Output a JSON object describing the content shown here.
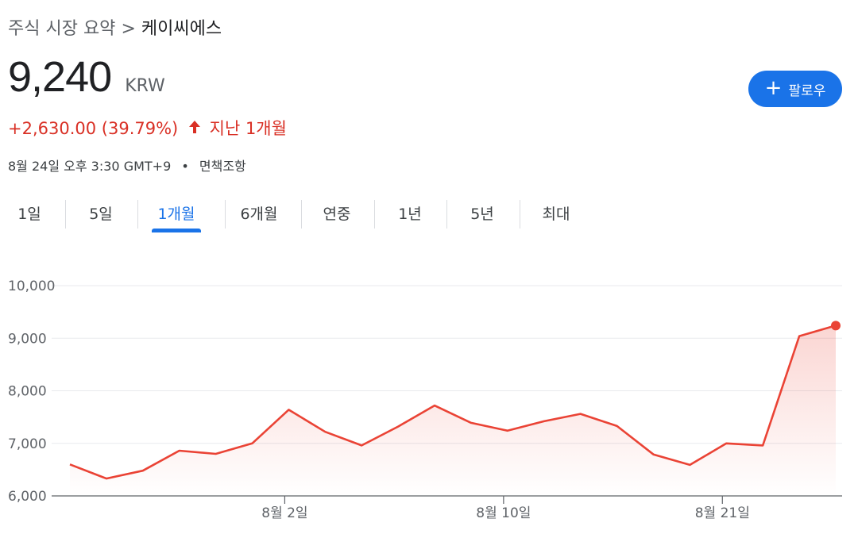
{
  "breadcrumb": {
    "parent": "주식 시장 요약",
    "separator": ">",
    "current": "케이씨에스"
  },
  "quote": {
    "price": "9,240",
    "currency": "KRW",
    "change": "+2,630.00 (39.79%)",
    "period": "지난 1개월",
    "timestamp": "8월 24일 오후 3:30 GMT+9",
    "separator_dot": "•",
    "disclaimer": "면책조항"
  },
  "follow_button": {
    "label": "팔로우",
    "icon": "plus-icon"
  },
  "tabs": [
    {
      "label": "1일",
      "active": false
    },
    {
      "label": "5일",
      "active": false
    },
    {
      "label": "1개월",
      "active": true
    },
    {
      "label": "6개월",
      "active": false
    },
    {
      "label": "연중",
      "active": false
    },
    {
      "label": "1년",
      "active": false
    },
    {
      "label": "5년",
      "active": false
    },
    {
      "label": "최대",
      "active": false
    }
  ],
  "colors": {
    "line": "#ea4335",
    "positive": "#d93025",
    "accent": "#1a73e8"
  },
  "chart_data": {
    "type": "area",
    "title": "",
    "xlabel": "",
    "ylabel": "",
    "ylim": [
      6000,
      10000
    ],
    "yticks": [
      6000,
      7000,
      8000,
      9000,
      10000
    ],
    "ytick_labels": [
      "6,000",
      "7,000",
      "8,000",
      "9,000",
      "10,000"
    ],
    "x_tick_labels": [
      {
        "label": "8월 2일",
        "index": 6
      },
      {
        "label": "8월 10일",
        "index": 12
      },
      {
        "label": "8월 21일",
        "index": 18
      }
    ],
    "series": [
      {
        "values": [
          6600,
          6330,
          6480,
          6860,
          6800,
          7000,
          7640,
          7220,
          6960,
          7320,
          7720,
          7390,
          7240,
          7420,
          7560,
          7330,
          6790,
          6590,
          7000,
          6960,
          9040,
          9240
        ]
      }
    ],
    "grid": true
  }
}
